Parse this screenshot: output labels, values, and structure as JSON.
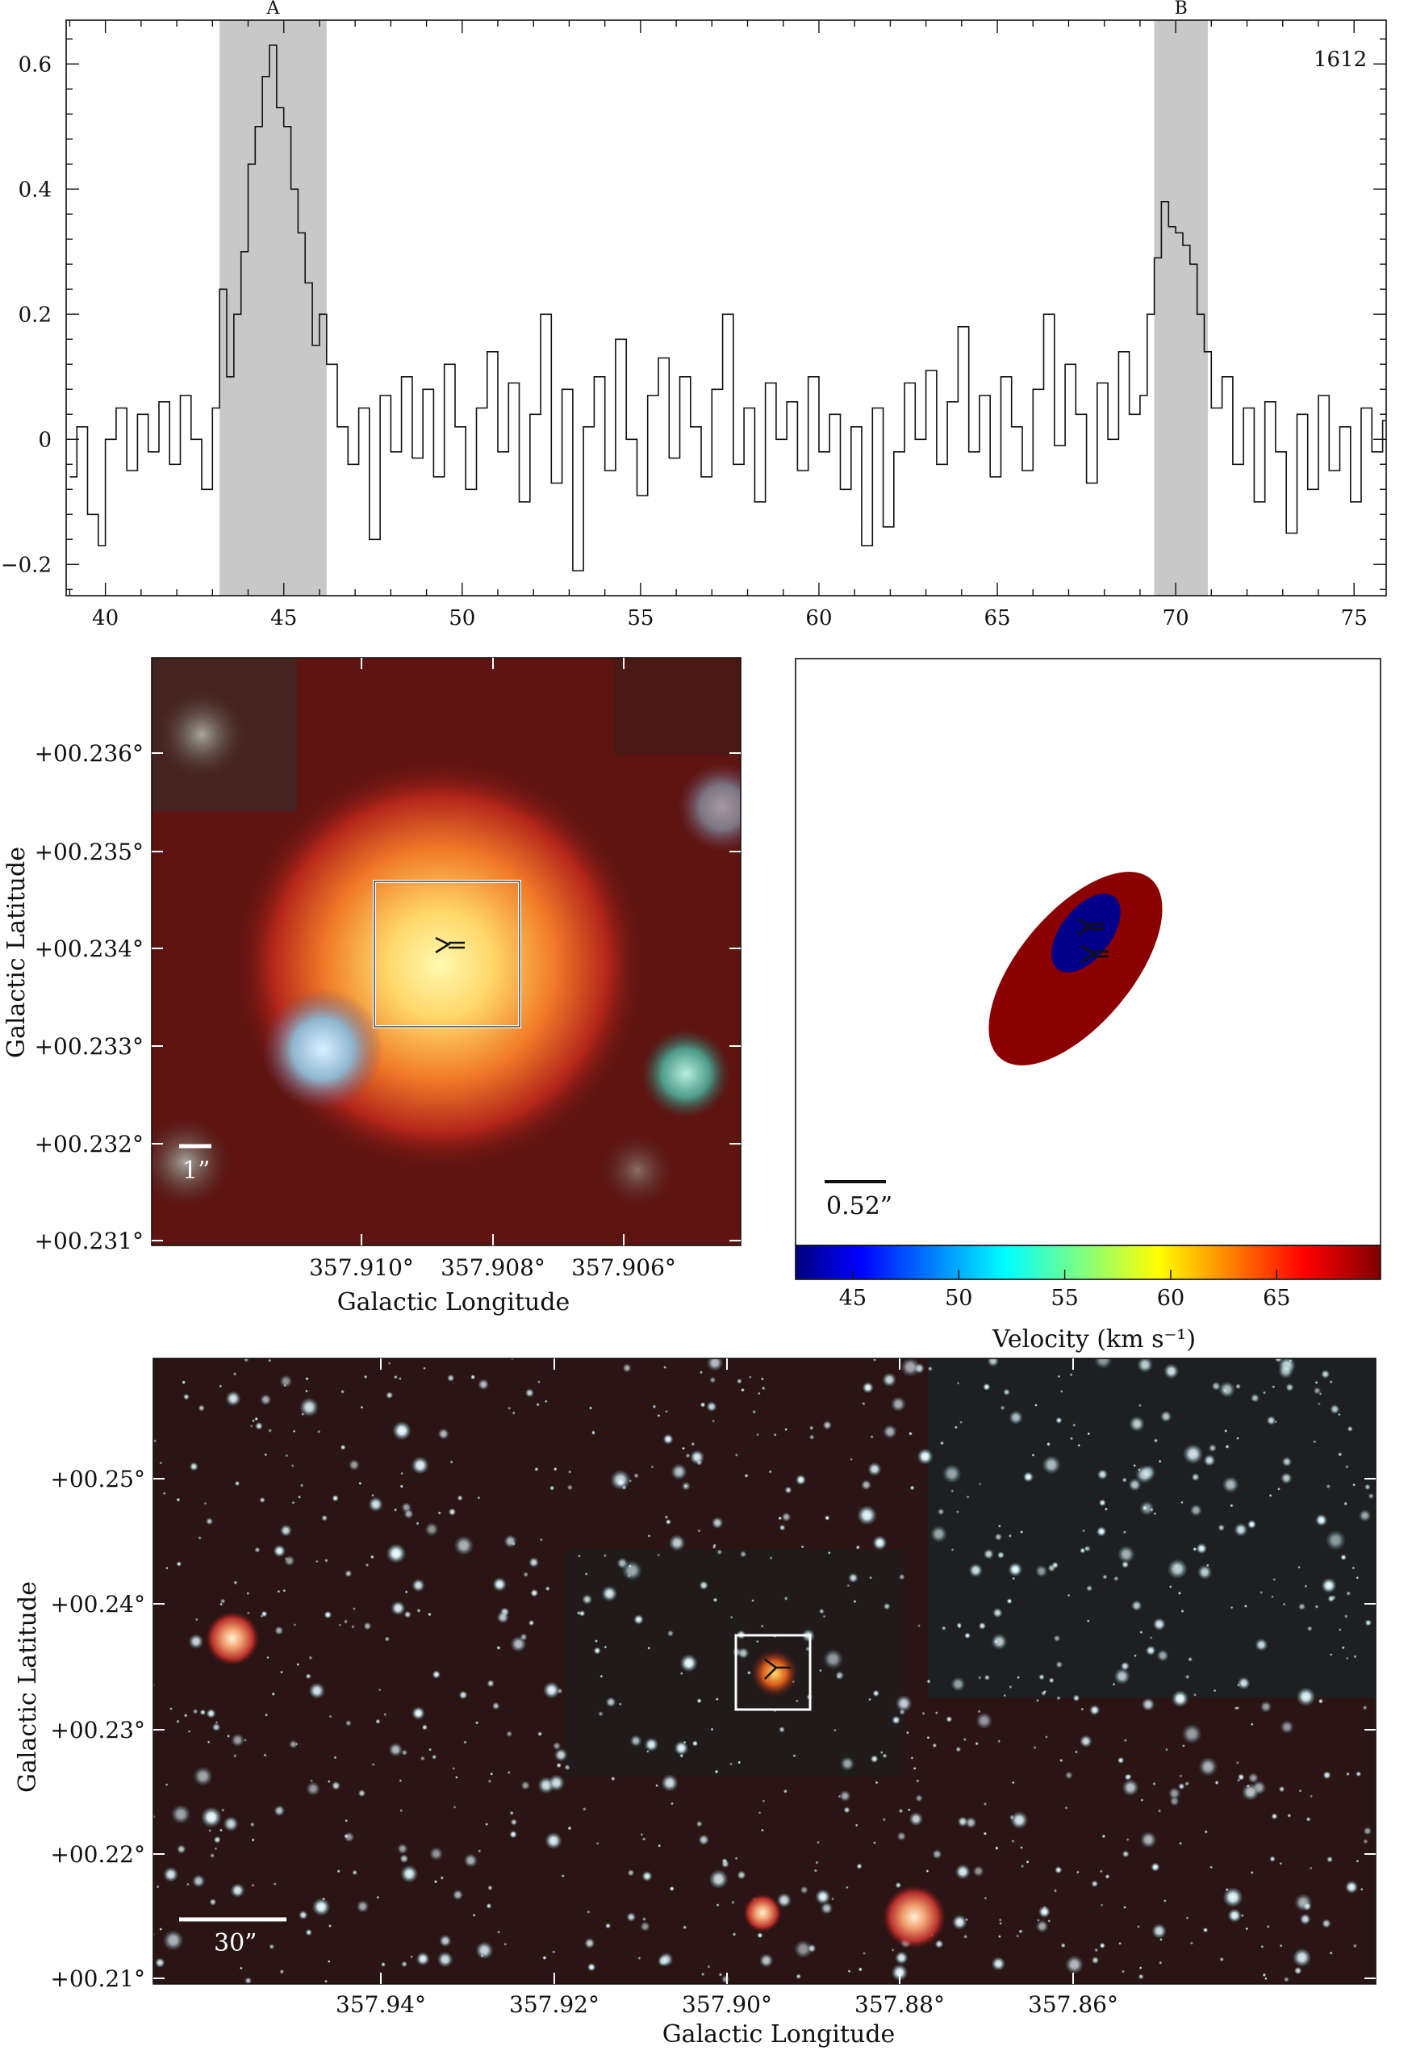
{
  "spectrum": {
    "line_label": "1612",
    "x_ticks": [
      "40",
      "45",
      "50",
      "55",
      "60",
      "65",
      "70",
      "75"
    ],
    "y_ticks": [
      "0.6",
      "0.4",
      "0.2",
      "0",
      "−0.2"
    ],
    "regions": [
      {
        "label": "A",
        "x0": 43.2,
        "x1": 46.2
      },
      {
        "label": "B",
        "x0": 69.4,
        "x1": 70.9
      }
    ],
    "band_color": "#c8c8c8"
  },
  "chart_data": [
    {
      "type": "line",
      "step": true,
      "xlim": [
        38.9,
        75.9
      ],
      "ylim": [
        -0.25,
        0.67
      ],
      "x_ticks": [
        40,
        45,
        50,
        55,
        60,
        65,
        70,
        75
      ],
      "y_ticks": [
        0.6,
        0.4,
        0.2,
        0,
        -0.2
      ],
      "annotations": [
        "A",
        "B",
        "1612"
      ],
      "series": [
        {
          "points": [
            [
              39.0,
              -0.06
            ],
            [
              39.2,
              0.02
            ],
            [
              39.5,
              -0.12
            ],
            [
              39.8,
              -0.17
            ],
            [
              40.0,
              0.0
            ],
            [
              40.3,
              0.05
            ],
            [
              40.6,
              -0.05
            ],
            [
              40.9,
              0.04
            ],
            [
              41.2,
              -0.02
            ],
            [
              41.5,
              0.06
            ],
            [
              41.8,
              -0.04
            ],
            [
              42.1,
              0.07
            ],
            [
              42.4,
              0.0
            ],
            [
              42.7,
              -0.08
            ],
            [
              43.0,
              0.05
            ],
            [
              43.2,
              0.24
            ],
            [
              43.4,
              0.1
            ],
            [
              43.6,
              0.2
            ],
            [
              43.8,
              0.3
            ],
            [
              44.0,
              0.44
            ],
            [
              44.2,
              0.5
            ],
            [
              44.4,
              0.58
            ],
            [
              44.6,
              0.63
            ],
            [
              44.8,
              0.53
            ],
            [
              45.0,
              0.5
            ],
            [
              45.2,
              0.4
            ],
            [
              45.4,
              0.33
            ],
            [
              45.6,
              0.25
            ],
            [
              45.8,
              0.15
            ],
            [
              46.0,
              0.2
            ],
            [
              46.2,
              0.12
            ],
            [
              46.5,
              0.02
            ],
            [
              46.8,
              -0.04
            ],
            [
              47.1,
              0.05
            ],
            [
              47.4,
              -0.16
            ],
            [
              47.7,
              0.07
            ],
            [
              48.0,
              -0.02
            ],
            [
              48.3,
              0.1
            ],
            [
              48.6,
              -0.03
            ],
            [
              48.9,
              0.08
            ],
            [
              49.2,
              -0.06
            ],
            [
              49.5,
              0.12
            ],
            [
              49.8,
              0.02
            ],
            [
              50.1,
              -0.08
            ],
            [
              50.4,
              0.05
            ],
            [
              50.7,
              0.14
            ],
            [
              51.0,
              -0.02
            ],
            [
              51.3,
              0.09
            ],
            [
              51.6,
              -0.1
            ],
            [
              51.9,
              0.04
            ],
            [
              52.2,
              0.2
            ],
            [
              52.5,
              -0.07
            ],
            [
              52.8,
              0.08
            ],
            [
              53.1,
              -0.21
            ],
            [
              53.4,
              0.02
            ],
            [
              53.7,
              0.1
            ],
            [
              54.0,
              -0.05
            ],
            [
              54.3,
              0.16
            ],
            [
              54.6,
              0.0
            ],
            [
              54.9,
              -0.09
            ],
            [
              55.2,
              0.07
            ],
            [
              55.5,
              0.13
            ],
            [
              55.8,
              -0.03
            ],
            [
              56.1,
              0.1
            ],
            [
              56.4,
              0.02
            ],
            [
              56.7,
              -0.06
            ],
            [
              57.0,
              0.08
            ],
            [
              57.3,
              0.2
            ],
            [
              57.6,
              -0.04
            ],
            [
              57.9,
              0.05
            ],
            [
              58.2,
              -0.1
            ],
            [
              58.5,
              0.09
            ],
            [
              58.8,
              0.0
            ],
            [
              59.1,
              0.06
            ],
            [
              59.4,
              -0.05
            ],
            [
              59.7,
              0.1
            ],
            [
              60.0,
              -0.02
            ],
            [
              60.3,
              0.04
            ],
            [
              60.6,
              -0.08
            ],
            [
              60.9,
              0.02
            ],
            [
              61.2,
              -0.17
            ],
            [
              61.5,
              0.05
            ],
            [
              61.8,
              -0.14
            ],
            [
              62.1,
              -0.02
            ],
            [
              62.4,
              0.09
            ],
            [
              62.7,
              0.0
            ],
            [
              63.0,
              0.11
            ],
            [
              63.3,
              -0.04
            ],
            [
              63.6,
              0.06
            ],
            [
              63.9,
              0.18
            ],
            [
              64.2,
              -0.02
            ],
            [
              64.5,
              0.07
            ],
            [
              64.8,
              -0.06
            ],
            [
              65.1,
              0.1
            ],
            [
              65.4,
              0.02
            ],
            [
              65.7,
              -0.05
            ],
            [
              66.0,
              0.08
            ],
            [
              66.3,
              0.2
            ],
            [
              66.6,
              -0.01
            ],
            [
              66.9,
              0.12
            ],
            [
              67.2,
              0.04
            ],
            [
              67.5,
              -0.07
            ],
            [
              67.8,
              0.09
            ],
            [
              68.1,
              0.0
            ],
            [
              68.4,
              0.14
            ],
            [
              68.7,
              0.04
            ],
            [
              69.0,
              0.07
            ],
            [
              69.2,
              0.2
            ],
            [
              69.4,
              0.29
            ],
            [
              69.6,
              0.38
            ],
            [
              69.8,
              0.34
            ],
            [
              70.0,
              0.33
            ],
            [
              70.2,
              0.31
            ],
            [
              70.4,
              0.28
            ],
            [
              70.6,
              0.2
            ],
            [
              70.8,
              0.14
            ],
            [
              71.0,
              0.05
            ],
            [
              71.3,
              0.1
            ],
            [
              71.6,
              -0.04
            ],
            [
              71.9,
              0.05
            ],
            [
              72.2,
              -0.1
            ],
            [
              72.5,
              0.06
            ],
            [
              72.8,
              -0.02
            ],
            [
              73.1,
              -0.15
            ],
            [
              73.4,
              0.04
            ],
            [
              73.7,
              -0.08
            ],
            [
              74.0,
              0.07
            ],
            [
              74.3,
              -0.05
            ],
            [
              74.6,
              0.02
            ],
            [
              74.9,
              -0.1
            ],
            [
              75.2,
              0.05
            ],
            [
              75.5,
              -0.02
            ],
            [
              75.8,
              0.03
            ]
          ]
        }
      ]
    }
  ],
  "zoom_image": {
    "x_ticks": [
      "357.910°",
      "357.908°",
      "357.906°"
    ],
    "y_ticks": [
      "+00.236°",
      "+00.235°",
      "+00.234°",
      "+00.233°",
      "+00.232°",
      "+00.231°"
    ],
    "xlabel": "Galactic Longitude",
    "ylabel": "Galactic Latitude",
    "scale_label": "1”"
  },
  "velocity_map": {
    "scale_label": "0.52”",
    "colorbar_ticks": [
      "45",
      "50",
      "55",
      "60",
      "65"
    ],
    "colorbar_label": "Velocity (km s⁻¹)",
    "outer_color": "#8b0000",
    "inner_color": "#00008b"
  },
  "field_image": {
    "x_ticks": [
      "357.94°",
      "357.92°",
      "357.90°",
      "357.88°",
      "357.86°"
    ],
    "y_ticks": [
      "+00.25°",
      "+00.24°",
      "+00.23°",
      "+00.22°",
      "+00.21°"
    ],
    "xlabel": "Galactic Longitude",
    "ylabel": "Galactic Latitude",
    "scale_label": "30”"
  }
}
